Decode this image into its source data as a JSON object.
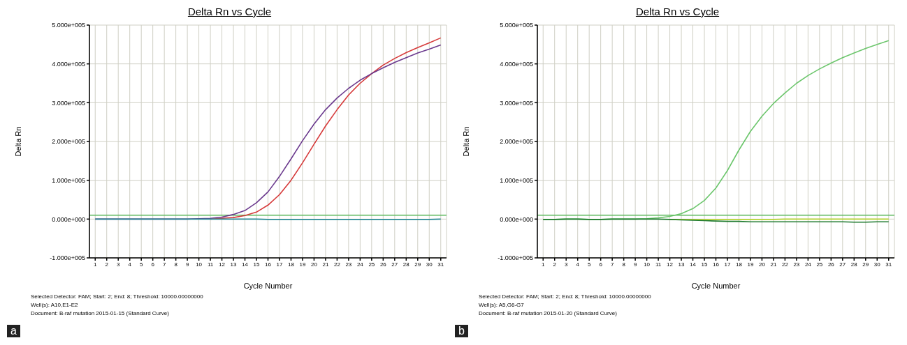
{
  "chart_data": [
    {
      "type": "line",
      "title": "Delta Rn vs Cycle",
      "xlabel": "Cycle Number",
      "ylabel": "Delta Rn",
      "x": [
        1,
        2,
        3,
        4,
        5,
        6,
        7,
        8,
        9,
        10,
        11,
        12,
        13,
        14,
        15,
        16,
        17,
        18,
        19,
        20,
        21,
        22,
        23,
        24,
        25,
        26,
        27,
        28,
        29,
        30,
        31
      ],
      "series": [
        {
          "color": "#d63a3a",
          "values": [
            null,
            null,
            null,
            null,
            null,
            null,
            null,
            null,
            null,
            null,
            0,
            2000,
            4000,
            9000,
            18000,
            36000,
            63000,
            100000,
            145000,
            193000,
            240000,
            282000,
            320000,
            350000,
            375000,
            397000,
            414000,
            429000,
            442000,
            454000,
            467000
          ]
        },
        {
          "color": "#6b3a8e",
          "values": [
            0,
            0,
            0,
            0,
            0,
            0,
            0,
            0,
            0,
            1000,
            2000,
            5000,
            12000,
            22000,
            42000,
            70000,
            110000,
            155000,
            202000,
            245000,
            282000,
            312000,
            337000,
            358000,
            375000,
            390000,
            404000,
            416000,
            428000,
            438000,
            449000
          ]
        },
        {
          "color": "#2a8a96",
          "values": [
            0,
            0,
            0,
            0,
            0,
            0,
            0,
            0,
            0,
            0,
            0,
            0,
            0,
            0,
            0,
            -1000,
            -1000,
            -1000,
            -1000,
            -1000,
            -1000,
            -1000,
            -1000,
            -1000,
            -1000,
            -1000,
            -1000,
            -1000,
            -1000,
            -1000,
            0
          ]
        }
      ],
      "xlim": [
        0.5,
        31.5
      ],
      "xticks": [
        1,
        2,
        3,
        4,
        5,
        6,
        7,
        8,
        9,
        10,
        11,
        12,
        13,
        14,
        15,
        16,
        17,
        18,
        19,
        20,
        21,
        22,
        23,
        24,
        25,
        26,
        27,
        28,
        29,
        30,
        31
      ],
      "ylim": [
        -100000,
        500000
      ],
      "yticks": [
        {
          "value": -100000,
          "label": "-1.000e+005"
        },
        {
          "value": 0,
          "label": "0.000e+000"
        },
        {
          "value": 100000,
          "label": "1.000e+005"
        },
        {
          "value": 200000,
          "label": "2.000e+005"
        },
        {
          "value": 300000,
          "label": "3.000e+005"
        },
        {
          "value": 400000,
          "label": "4.000e+005"
        },
        {
          "value": 500000,
          "label": "5.000e+005"
        }
      ],
      "grid": true,
      "ref_lines": [
        {
          "axis": "y",
          "value": 10000,
          "color": "#5cb85c"
        }
      ],
      "annotations": [
        "Selected Detector: FAM; Start: 2; End: 8; Threshold: 10000.00000000",
        "Well(s): A10,E1-E2",
        "Document: B-raf mutation 2015-01-15 (Standard Curve)",
        "a"
      ]
    },
    {
      "type": "line",
      "title": "Delta Rn vs Cycle",
      "xlabel": "Cycle Number",
      "ylabel": "Delta Rn",
      "x": [
        1,
        2,
        3,
        4,
        5,
        6,
        7,
        8,
        9,
        10,
        11,
        12,
        13,
        14,
        15,
        16,
        17,
        18,
        19,
        20,
        21,
        22,
        23,
        24,
        25,
        26,
        27,
        28,
        29,
        30,
        31
      ],
      "series": [
        {
          "color": "#6cc66c",
          "values": [
            -1000,
            -1000,
            0,
            0,
            -1000,
            -1000,
            0,
            0,
            0,
            1000,
            3000,
            7000,
            14000,
            27000,
            48000,
            80000,
            125000,
            178000,
            226000,
            265000,
            298000,
            325000,
            350000,
            370000,
            387000,
            402000,
            416000,
            428000,
            440000,
            450000,
            460000
          ]
        },
        {
          "color": "#b5d334",
          "values": [
            null,
            null,
            null,
            null,
            null,
            null,
            null,
            null,
            null,
            null,
            null,
            -1000,
            -1000,
            -1000,
            -1000,
            -1000,
            -1000,
            -1000,
            -1000,
            -1000,
            -1000,
            0,
            0,
            0,
            0,
            0,
            0,
            0,
            0,
            0,
            0
          ]
        },
        {
          "color": "#1e7a2e",
          "values": [
            -1000,
            -1000,
            0,
            0,
            -1000,
            -1000,
            0,
            0,
            0,
            0,
            0,
            -1000,
            -2000,
            -3000,
            -4000,
            -5000,
            -6000,
            -6000,
            -7000,
            -7000,
            -7000,
            -7000,
            -7000,
            -7000,
            -7000,
            -7000,
            -7000,
            -8000,
            -8000,
            -7000,
            -7000
          ]
        }
      ],
      "xlim": [
        0.5,
        31.5
      ],
      "xticks": [
        1,
        2,
        3,
        4,
        5,
        6,
        7,
        8,
        9,
        10,
        11,
        12,
        13,
        14,
        15,
        16,
        17,
        18,
        19,
        20,
        21,
        22,
        23,
        24,
        25,
        26,
        27,
        28,
        29,
        30,
        31
      ],
      "ylim": [
        -100000,
        500000
      ],
      "yticks": [
        {
          "value": -100000,
          "label": "-1.000e+005"
        },
        {
          "value": 0,
          "label": "0.000e+000"
        },
        {
          "value": 100000,
          "label": "1.000e+005"
        },
        {
          "value": 200000,
          "label": "2.000e+005"
        },
        {
          "value": 300000,
          "label": "3.000e+005"
        },
        {
          "value": 400000,
          "label": "4.000e+005"
        },
        {
          "value": 500000,
          "label": "5.000e+005"
        }
      ],
      "grid": true,
      "ref_lines": [
        {
          "axis": "y",
          "value": 10000,
          "color": "#5cb85c"
        }
      ],
      "annotations": [
        "Selected Detector: FAM; Start: 2; End: 8; Threshold: 10000.00000000",
        "Well(s): A5,G6-G7",
        "Document: B-raf mutation 2015-01-20 (Standard Curve)",
        "b"
      ]
    }
  ]
}
